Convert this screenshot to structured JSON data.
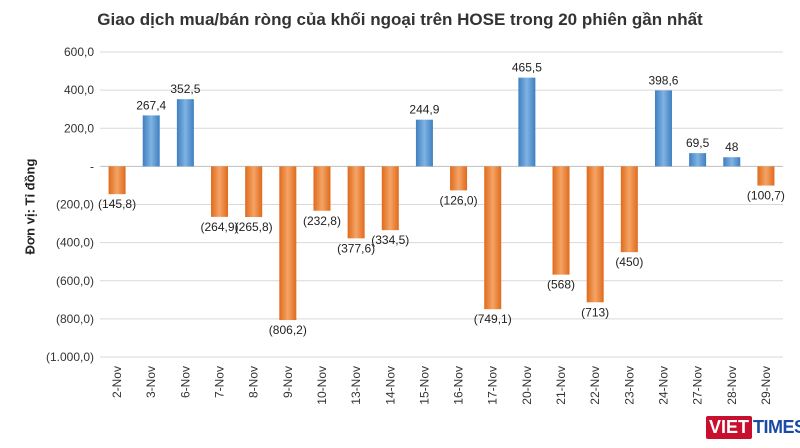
{
  "logo": {
    "part1": "VIET",
    "part2": "TIMES"
  },
  "chart_data": {
    "type": "bar",
    "title": "Giao dịch mua/bán ròng của khối ngoại trên HOSE trong 20 phiên gần nhất",
    "ylabel": "Đơn vị: Tỉ đồng",
    "xlabel": "",
    "ylim": [
      -1000,
      600
    ],
    "yticks": [
      600,
      400,
      200,
      0,
      -200,
      -400,
      -600,
      -800,
      -1000
    ],
    "ytick_labels": [
      "600,0",
      "400,0",
      "200,0",
      "-",
      "(200,0)",
      "(400,0)",
      "(600,0)",
      "(800,0)",
      "(1.000,0)"
    ],
    "categories": [
      "2-Nov",
      "3-Nov",
      "6-Nov",
      "7-Nov",
      "8-Nov",
      "9-Nov",
      "10-Nov",
      "13-Nov",
      "14-Nov",
      "15-Nov",
      "16-Nov",
      "17-Nov",
      "20-Nov",
      "21-Nov",
      "22-Nov",
      "23-Nov",
      "24-Nov",
      "27-Nov",
      "28-Nov",
      "29-Nov"
    ],
    "values": [
      -145.8,
      267.4,
      352.5,
      -264.9,
      -265.8,
      -806.2,
      -232.8,
      -377.6,
      -334.5,
      244.9,
      -126.0,
      -749.1,
      465.5,
      -568,
      -713,
      -450,
      398.6,
      69.5,
      48,
      -100.7
    ],
    "data_labels": [
      "(145,8)",
      "267,4",
      "352,5",
      "(264,9)",
      "(265,8)",
      "(806,2)",
      "(232,8)",
      "(377,6)",
      "(334,5)",
      "244,9",
      "(126,0)",
      "(749,1)",
      "465,5",
      "(568)",
      "(713)",
      "(450)",
      "398,6",
      "69,5",
      "48",
      "(100,7)"
    ],
    "colors": {
      "positive": "#5b9bd5",
      "negative": "#ed7d31",
      "grid": "#d9d9d9"
    },
    "grid": true
  }
}
